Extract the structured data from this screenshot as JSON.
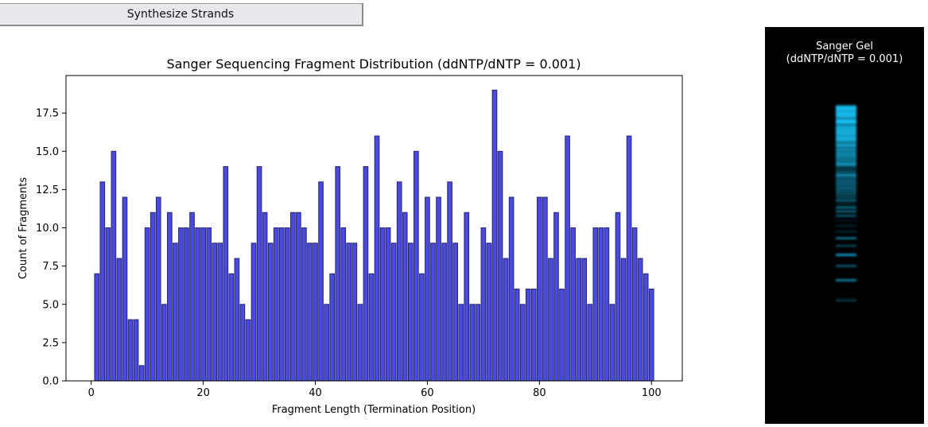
{
  "button": {
    "label": "Synthesize Strands"
  },
  "chart_data": {
    "type": "bar",
    "title": "Sanger Sequencing Fragment Distribution (ddNTP/dNTP = 0.001)",
    "xlabel": "Fragment Length (Termination Position)",
    "ylabel": "Count of Fragments",
    "xlim": [
      -4.5,
      105.5
    ],
    "ylim": [
      0,
      19.95
    ],
    "xticks": [
      0,
      20,
      40,
      60,
      80,
      100
    ],
    "yticks": [
      0.0,
      2.5,
      5.0,
      7.5,
      10.0,
      12.5,
      15.0,
      17.5
    ],
    "bar_color": "#4a4ae0",
    "edge_color": "#26266e",
    "x": [
      1,
      2,
      3,
      4,
      5,
      6,
      7,
      8,
      9,
      10,
      11,
      12,
      13,
      14,
      15,
      16,
      17,
      18,
      19,
      20,
      21,
      22,
      23,
      24,
      25,
      26,
      27,
      28,
      29,
      30,
      31,
      32,
      33,
      34,
      35,
      36,
      37,
      38,
      39,
      40,
      41,
      42,
      43,
      44,
      45,
      46,
      47,
      48,
      49,
      50,
      51,
      52,
      53,
      54,
      55,
      56,
      57,
      58,
      59,
      60,
      61,
      62,
      63,
      64,
      65,
      66,
      67,
      68,
      69,
      70,
      71,
      72,
      73,
      74,
      75,
      76,
      77,
      78,
      79,
      80,
      81,
      82,
      83,
      84,
      85,
      86,
      87,
      88,
      89,
      90,
      91,
      92,
      93,
      94,
      95,
      96,
      97,
      98,
      99,
      100
    ],
    "values": [
      7,
      13,
      10,
      15,
      8,
      12,
      4,
      4,
      1,
      10,
      11,
      12,
      5,
      11,
      9,
      10,
      10,
      11,
      10,
      10,
      10,
      9,
      9,
      14,
      7,
      8,
      5,
      4,
      9,
      14,
      11,
      9,
      10,
      10,
      10,
      11,
      11,
      10,
      9,
      9,
      13,
      5,
      7,
      14,
      10,
      9,
      9,
      5,
      14,
      7,
      16,
      10,
      10,
      9,
      13,
      11,
      9,
      15,
      7,
      12,
      9,
      12,
      9,
      13,
      9,
      5,
      11,
      5,
      5,
      10,
      9,
      19,
      15,
      8,
      12,
      6,
      5,
      6,
      6,
      12,
      12,
      8,
      11,
      6,
      16,
      10,
      8,
      8,
      5,
      10,
      10,
      10,
      5,
      11,
      8,
      16,
      10,
      8,
      7,
      6
    ]
  },
  "gel": {
    "title_line1": "Sanger Gel",
    "title_line2": "(ddNTP/dNTP = 0.001)",
    "band_color": "#18c8ff"
  }
}
